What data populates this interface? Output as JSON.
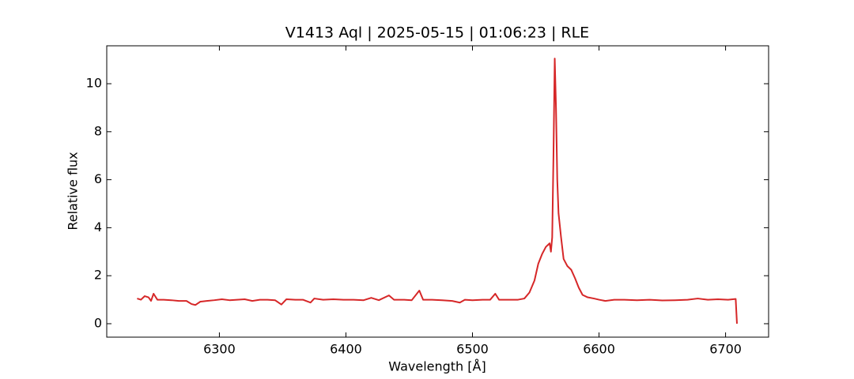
{
  "chart_data": {
    "type": "line",
    "title": "V1413 Aql | 2025-05-15 | 01:06:23 | RLE",
    "x_label": "Wavelength [Å]",
    "y_label": "Relative flux",
    "x": [
      6235,
      6238,
      6241,
      6244,
      6246,
      6248,
      6251,
      6256,
      6262,
      6268,
      6274,
      6278,
      6281,
      6285,
      6290,
      6296,
      6302,
      6308,
      6314,
      6320,
      6326,
      6332,
      6338,
      6344,
      6349,
      6353,
      6360,
      6366,
      6372,
      6375,
      6382,
      6390,
      6398,
      6406,
      6414,
      6420,
      6426,
      6434,
      6438,
      6446,
      6452,
      6458,
      6461,
      6468,
      6476,
      6484,
      6490,
      6494,
      6500,
      6508,
      6514,
      6518,
      6521,
      6528,
      6536,
      6541,
      6545,
      6549,
      6552,
      6555,
      6558,
      6561,
      6562,
      6563,
      6564,
      6565,
      6566,
      6567,
      6568,
      6570,
      6572,
      6575,
      6578,
      6581,
      6584,
      6587,
      6591,
      6596,
      6600,
      6605,
      6612,
      6620,
      6630,
      6640,
      6650,
      6660,
      6670,
      6678,
      6686,
      6694,
      6702,
      6708,
      6709
    ],
    "series": [
      {
        "name": "Relative flux",
        "color": "#d62728",
        "values": [
          1.05,
          1.0,
          1.15,
          1.1,
          0.95,
          1.25,
          1.0,
          1.0,
          0.98,
          0.95,
          0.95,
          0.82,
          0.78,
          0.92,
          0.95,
          0.98,
          1.02,
          0.98,
          1.0,
          1.02,
          0.95,
          1.0,
          1.0,
          0.98,
          0.8,
          1.02,
          1.0,
          1.0,
          0.88,
          1.05,
          1.0,
          1.02,
          1.0,
          1.0,
          0.98,
          1.08,
          0.98,
          1.18,
          1.0,
          1.0,
          0.98,
          1.38,
          1.0,
          1.0,
          0.98,
          0.95,
          0.88,
          1.0,
          0.98,
          1.0,
          1.0,
          1.25,
          1.0,
          1.0,
          1.0,
          1.05,
          1.3,
          1.8,
          2.5,
          2.9,
          3.2,
          3.35,
          3.0,
          3.6,
          7.0,
          11.05,
          9.0,
          6.0,
          4.6,
          3.6,
          2.7,
          2.4,
          2.25,
          1.9,
          1.5,
          1.2,
          1.1,
          1.05,
          1.0,
          0.95,
          1.0,
          1.0,
          0.98,
          1.0,
          0.97,
          0.98,
          1.0,
          1.05,
          1.0,
          1.02,
          1.0,
          1.03,
          0.0
        ]
      }
    ],
    "xlim": [
      6211,
      6734
    ],
    "ylim": [
      -0.56,
      11.58
    ],
    "xticks": [
      6300,
      6400,
      6500,
      6600,
      6700
    ],
    "yticks": [
      0,
      2,
      4,
      6,
      8,
      10
    ],
    "grid": false
  }
}
